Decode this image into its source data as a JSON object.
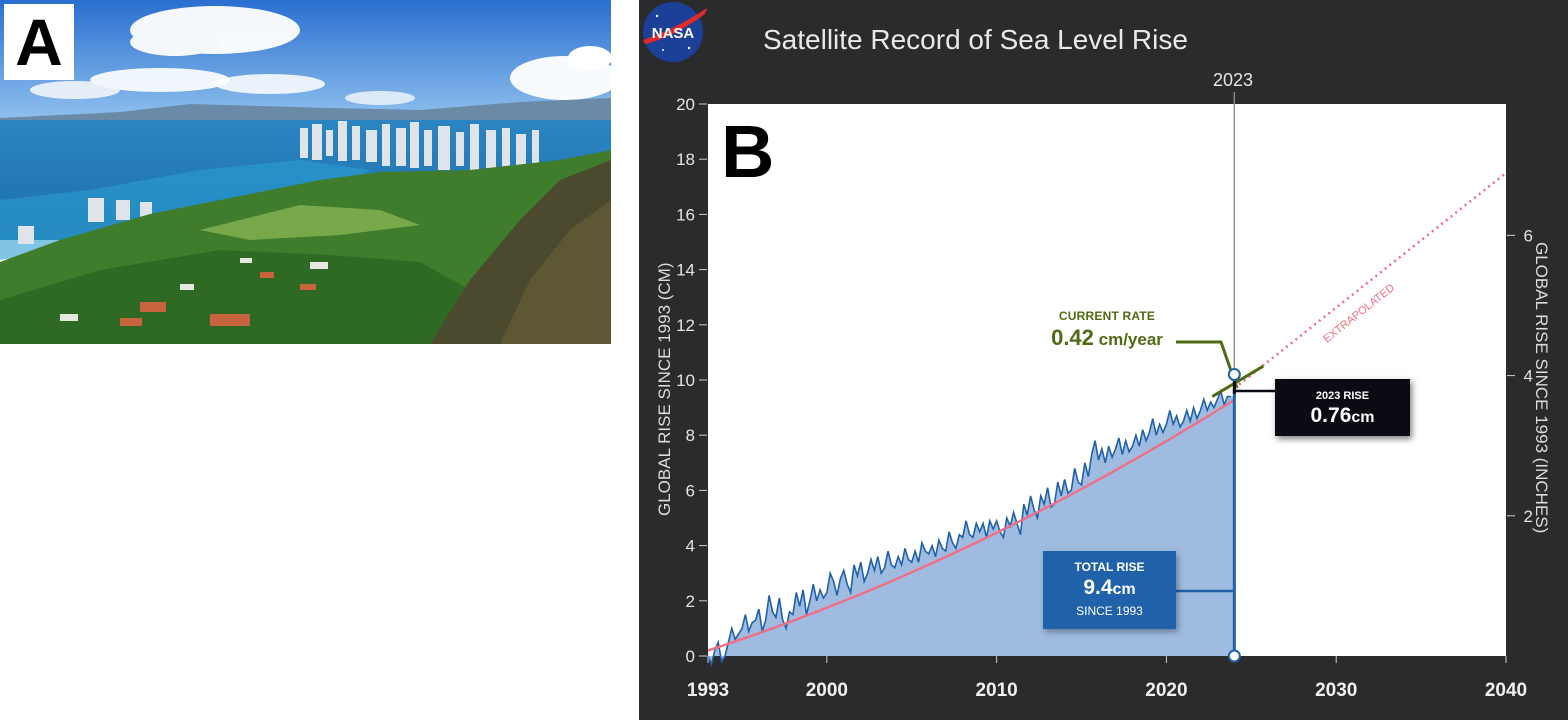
{
  "panels": {
    "a": {
      "letter": "A"
    },
    "b": {
      "letter": "B"
    }
  },
  "logo": {
    "text": "NASA"
  },
  "chart_data": {
    "type": "area",
    "title": "Satellite Record of Sea Level Rise",
    "ylabel": "GLOBAL RISE SINCE 1993 (CM)",
    "ylabel_right": "GLOBAL RISE SINCE 1993 (INCHES)",
    "xlim": [
      1993,
      2040
    ],
    "ylim": [
      0,
      20
    ],
    "x_ticks": [
      1993,
      2000,
      2010,
      2020,
      2030,
      2040
    ],
    "y_ticks": [
      0,
      2,
      4,
      6,
      8,
      10,
      12,
      14,
      16,
      18,
      20
    ],
    "y_ticks_right": [
      2,
      4,
      6
    ],
    "grid": false,
    "series": [
      {
        "x": [
          1993.0,
          1993.2,
          1993.4,
          1993.6,
          1993.8,
          1994.0,
          1994.2,
          1994.4,
          1994.6,
          1994.8,
          1995.0,
          1995.2,
          1995.4,
          1995.6,
          1995.8,
          1996.0,
          1996.2,
          1996.4,
          1996.6,
          1996.8,
          1997.0,
          1997.2,
          1997.4,
          1997.6,
          1997.8,
          1998.0,
          1998.2,
          1998.4,
          1998.6,
          1998.8,
          1999.0,
          1999.2,
          1999.4,
          1999.6,
          1999.8,
          2000.0,
          2000.2,
          2000.4,
          2000.6,
          2000.8,
          2001.0,
          2001.2,
          2001.4,
          2001.6,
          2001.8,
          2002.0,
          2002.2,
          2002.4,
          2002.6,
          2002.8,
          2003.0,
          2003.2,
          2003.4,
          2003.6,
          2003.8,
          2004.0,
          2004.2,
          2004.4,
          2004.6,
          2004.8,
          2005.0,
          2005.2,
          2005.4,
          2005.6,
          2005.8,
          2006.0,
          2006.2,
          2006.4,
          2006.6,
          2006.8,
          2007.0,
          2007.2,
          2007.4,
          2007.6,
          2007.8,
          2008.0,
          2008.2,
          2008.4,
          2008.6,
          2008.8,
          2009.0,
          2009.2,
          2009.4,
          2009.6,
          2009.8,
          2010.0,
          2010.2,
          2010.4,
          2010.6,
          2010.8,
          2011.0,
          2011.2,
          2011.4,
          2011.6,
          2011.8,
          2012.0,
          2012.2,
          2012.4,
          2012.6,
          2012.8,
          2013.0,
          2013.2,
          2013.4,
          2013.6,
          2013.8,
          2014.0,
          2014.2,
          2014.4,
          2014.6,
          2014.8,
          2015.0,
          2015.2,
          2015.4,
          2015.6,
          2015.8,
          2016.0,
          2016.2,
          2016.4,
          2016.6,
          2016.8,
          2017.0,
          2017.2,
          2017.4,
          2017.6,
          2017.8,
          2018.0,
          2018.2,
          2018.4,
          2018.6,
          2018.8,
          2019.0,
          2019.2,
          2019.4,
          2019.6,
          2019.8,
          2020.0,
          2020.2,
          2020.4,
          2020.6,
          2020.8,
          2021.0,
          2021.2,
          2021.4,
          2021.6,
          2021.8,
          2022.0,
          2022.2,
          2022.4,
          2022.6,
          2022.8,
          2023.0,
          2023.2,
          2023.4,
          2023.6,
          2023.8
        ],
        "values": [
          0.0,
          -0.3,
          0.2,
          0.5,
          -0.2,
          0.0,
          0.5,
          1.0,
          0.6,
          0.8,
          1.0,
          1.5,
          0.9,
          1.2,
          1.3,
          1.7,
          0.9,
          1.3,
          2.2,
          1.6,
          1.4,
          2.1,
          1.3,
          1.0,
          1.6,
          1.5,
          2.3,
          1.8,
          2.4,
          1.5,
          2.0,
          2.6,
          2.0,
          2.4,
          2.1,
          2.3,
          3.0,
          2.7,
          2.2,
          2.8,
          3.1,
          2.6,
          2.3,
          3.3,
          2.9,
          3.4,
          2.7,
          3.0,
          3.5,
          3.1,
          3.6,
          3.0,
          3.2,
          3.8,
          3.3,
          3.2,
          3.6,
          3.3,
          3.9,
          3.5,
          3.4,
          3.8,
          3.4,
          4.1,
          3.8,
          3.7,
          4.0,
          3.6,
          4.2,
          3.9,
          3.8,
          4.5,
          4.1,
          3.9,
          4.4,
          4.3,
          4.9,
          4.4,
          4.3,
          4.8,
          4.5,
          4.8,
          4.3,
          4.9,
          4.6,
          4.9,
          4.5,
          4.3,
          5.0,
          4.7,
          5.2,
          4.8,
          4.4,
          5.5,
          5.1,
          5.8,
          5.3,
          5.0,
          5.8,
          5.5,
          6.1,
          5.4,
          5.5,
          6.3,
          5.8,
          6.4,
          5.9,
          6.0,
          6.8,
          6.3,
          6.2,
          7.0,
          6.5,
          7.3,
          7.8,
          7.1,
          7.5,
          7.0,
          7.6,
          7.2,
          7.5,
          7.9,
          7.3,
          7.8,
          7.4,
          7.6,
          8.0,
          7.6,
          8.2,
          7.8,
          8.1,
          8.6,
          8.0,
          8.4,
          8.1,
          8.4,
          8.9,
          8.4,
          8.7,
          8.3,
          8.5,
          8.9,
          8.5,
          9.0,
          8.6,
          8.9,
          9.3,
          8.9,
          9.2,
          9.0,
          9.3,
          9.6,
          9.1,
          9.4,
          9.4
        ]
      }
    ],
    "trend_extrapolated": {
      "x": [
        2024,
        2040
      ],
      "values": [
        9.7,
        17.5
      ]
    },
    "vertical_marker": {
      "x": 2024,
      "label": "2023"
    },
    "annotations": {
      "rate_title": "CURRENT RATE",
      "rate_value": "0.42",
      "rate_unit": " cm/year",
      "rise23_title": "2023 RISE",
      "rise23_value": "0.76",
      "rise23_unit": "cm",
      "total_title": "TOTAL RISE",
      "total_value": "9.4",
      "total_unit": "cm",
      "total_sub": "SINCE 1993",
      "extrapolated": "EXTRAPOLATED"
    },
    "colors": {
      "area": "#9fbce0",
      "line": "#1f62a9",
      "trend": "#f06e86",
      "rate": "#4f6b14",
      "background": "#2b2b2d"
    }
  }
}
